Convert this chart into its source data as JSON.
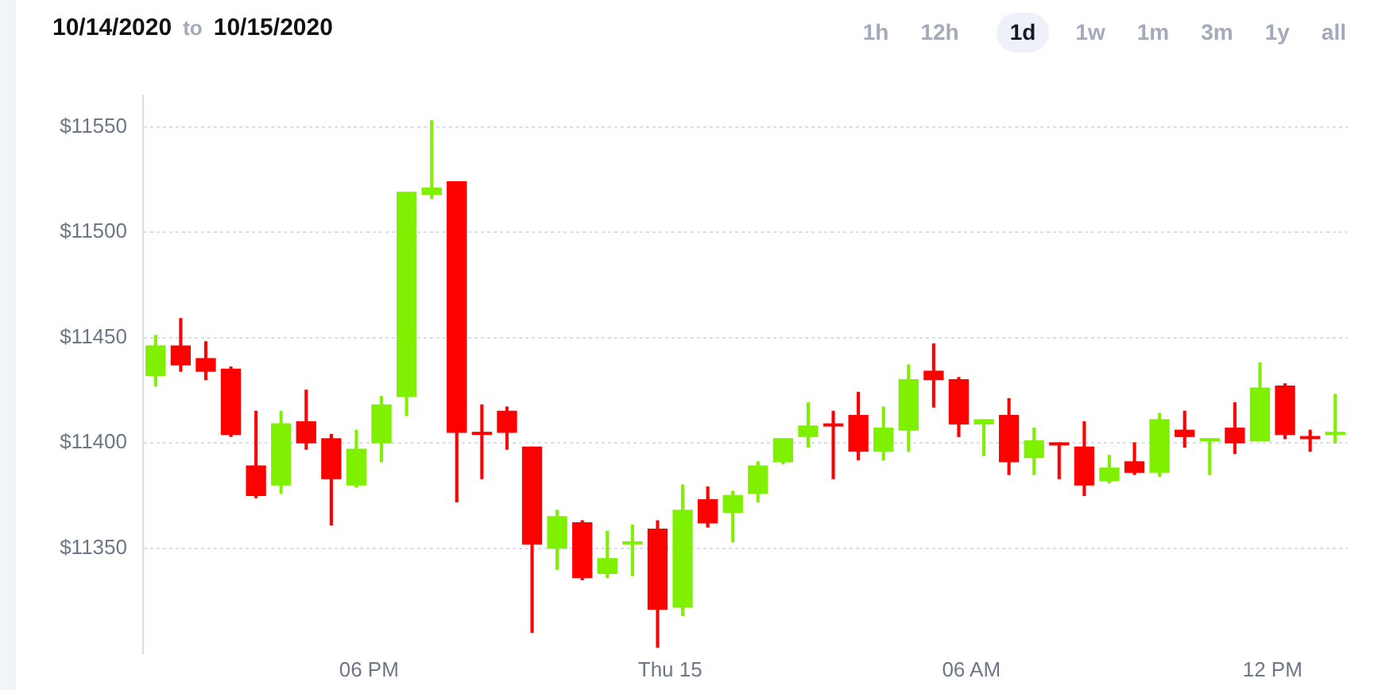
{
  "chart_data": {
    "type": "candlestick",
    "title": "10/14/2020 to 10/15/2020",
    "annotations": [
      "1h",
      "12h",
      "1d",
      "1w",
      "1m",
      "3m",
      "1y",
      "all"
    ],
    "x": [
      "2020-10-14T13:45",
      "2020-10-14T14:15",
      "2020-10-14T14:45",
      "2020-10-14T15:15",
      "2020-10-14T15:45",
      "2020-10-14T16:15",
      "2020-10-14T16:45",
      "2020-10-14T17:15",
      "2020-10-14T17:45",
      "2020-10-14T18:15",
      "2020-10-14T18:45",
      "2020-10-14T19:15",
      "2020-10-14T19:45",
      "2020-10-14T20:15",
      "2020-10-14T20:45",
      "2020-10-14T21:15",
      "2020-10-14T21:45",
      "2020-10-14T22:15",
      "2020-10-14T22:45",
      "2020-10-14T23:15",
      "2020-10-14T23:45",
      "2020-10-15T00:15",
      "2020-10-15T00:45",
      "2020-10-15T01:15",
      "2020-10-15T01:45",
      "2020-10-15T02:15",
      "2020-10-15T02:45",
      "2020-10-15T03:15",
      "2020-10-15T03:45",
      "2020-10-15T04:15",
      "2020-10-15T04:45",
      "2020-10-15T05:15",
      "2020-10-15T05:45",
      "2020-10-15T06:15",
      "2020-10-15T06:45",
      "2020-10-15T07:15",
      "2020-10-15T07:45",
      "2020-10-15T08:15",
      "2020-10-15T08:45",
      "2020-10-15T09:15",
      "2020-10-15T09:45",
      "2020-10-15T10:15",
      "2020-10-15T10:45",
      "2020-10-15T11:15",
      "2020-10-15T11:45",
      "2020-10-15T12:15",
      "2020-10-15T12:45",
      "2020-10-15T13:15"
    ],
    "ohlc": [
      [
        11432,
        11451,
        11427,
        11446
      ],
      [
        11446,
        11459,
        11434,
        11437
      ],
      [
        11440,
        11448,
        11430,
        11434
      ],
      [
        11435,
        11436,
        11403,
        11404
      ],
      [
        11389,
        11415,
        11374,
        11375
      ],
      [
        11380,
        11415,
        11376,
        11409
      ],
      [
        11410,
        11425,
        11397,
        11400
      ],
      [
        11402,
        11404,
        11361,
        11383
      ],
      [
        11380,
        11406,
        11379,
        11397
      ],
      [
        11400,
        11422,
        11391,
        11418
      ],
      [
        11422,
        11519,
        11413,
        11519
      ],
      [
        11518,
        11553,
        11516,
        11521
      ],
      [
        11524,
        11524,
        11372,
        11405
      ],
      [
        11405,
        11418,
        11383,
        11404
      ],
      [
        11415,
        11417,
        11397,
        11405
      ],
      [
        11398,
        11398,
        11310,
        11352
      ],
      [
        11350,
        11368,
        11340,
        11365
      ],
      [
        11362,
        11363,
        11335,
        11336
      ],
      [
        11338,
        11358,
        11336,
        11345
      ],
      [
        11352,
        11361,
        11337,
        11353
      ],
      [
        11359,
        11363,
        11303,
        11321
      ],
      [
        11322,
        11380,
        11318,
        11368
      ],
      [
        11373,
        11379,
        11360,
        11362
      ],
      [
        11367,
        11377,
        11353,
        11375
      ],
      [
        11376,
        11391,
        11372,
        11389
      ],
      [
        11391,
        11402,
        11390,
        11402
      ],
      [
        11403,
        11419,
        11398,
        11408
      ],
      [
        11409,
        11415,
        11383,
        11408
      ],
      [
        11413,
        11424,
        11392,
        11396
      ],
      [
        11396,
        11417,
        11392,
        11407
      ],
      [
        11406,
        11437,
        11396,
        11430
      ],
      [
        11434,
        11447,
        11417,
        11430
      ],
      [
        11430,
        11431,
        11403,
        11409
      ],
      [
        11409,
        11411,
        11394,
        11411
      ],
      [
        11413,
        11421,
        11385,
        11391
      ],
      [
        11393,
        11407,
        11385,
        11401
      ],
      [
        11400,
        11400,
        11383,
        11399
      ],
      [
        11398,
        11410,
        11375,
        11380
      ],
      [
        11382,
        11394,
        11381,
        11388
      ],
      [
        11391,
        11400,
        11385,
        11386
      ],
      [
        11386,
        11414,
        11384,
        11411
      ],
      [
        11406,
        11415,
        11398,
        11403
      ],
      [
        11401,
        11402,
        11385,
        11402
      ],
      [
        11407,
        11419,
        11395,
        11400
      ],
      [
        11401,
        11438,
        11401,
        11426
      ],
      [
        11427,
        11428,
        11402,
        11404
      ],
      [
        11403,
        11406,
        11396,
        11402
      ],
      [
        11404,
        11423,
        11400,
        11405
      ]
    ],
    "colors": [
      "#7ff000",
      "#ff0000",
      "#ff0000",
      "#ff0000",
      "#ff0000",
      "#7ff000",
      "#ff0000",
      "#ff0000",
      "#7ff000",
      "#7ff000",
      "#7ff000",
      "#7ff000",
      "#ff0000",
      "#ff0000",
      "#ff0000",
      "#ff0000",
      "#7ff000",
      "#ff0000",
      "#7ff000",
      "#7ff000",
      "#ff0000",
      "#7ff000",
      "#ff0000",
      "#7ff000",
      "#7ff000",
      "#7ff000",
      "#7ff000",
      "#ff0000",
      "#ff0000",
      "#7ff000",
      "#7ff000",
      "#ff0000",
      "#ff0000",
      "#7ff000",
      "#ff0000",
      "#7ff000",
      "#ff0000",
      "#ff0000",
      "#7ff000",
      "#ff0000",
      "#7ff000",
      "#ff0000",
      "#7ff000",
      "#ff0000",
      "#7ff000",
      "#ff0000",
      "#ff0000",
      "#7ff000"
    ],
    "xlim": [
      "2020-10-14T13:30",
      "2020-10-15T13:30"
    ],
    "xticks": [
      {
        "value": "2020-10-14T18:00",
        "label": "06 PM"
      },
      {
        "value": "2020-10-15T00:00",
        "label": "Thu 15"
      },
      {
        "value": "2020-10-15T06:00",
        "label": "06 AM"
      },
      {
        "value": "2020-10-15T12:00",
        "label": "12 PM"
      }
    ],
    "ylim": [
      11300,
      11565
    ],
    "yticks": [
      {
        "value": 11350,
        "label": "$11350"
      },
      {
        "value": 11400,
        "label": "$11400"
      },
      {
        "value": 11450,
        "label": "$11450"
      },
      {
        "value": 11500,
        "label": "$11500"
      },
      {
        "value": 11550,
        "label": "$11550"
      }
    ],
    "grid": "y",
    "legend": false
  }
}
